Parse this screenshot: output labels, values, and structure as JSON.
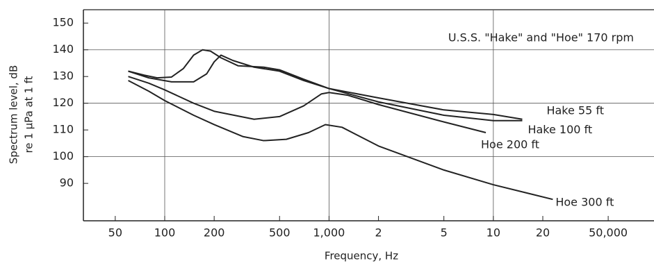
{
  "chart_data": {
    "type": "line",
    "annotation": "U.S.S. \"Hake\" and \"Hoe\" 170 rpm",
    "xlabel": "Frequency, Hz",
    "ylabel": [
      "Spectrum level, dB",
      "re 1 μPa at 1 ft"
    ],
    "xscale": "log",
    "xlim": [
      32,
      95000
    ],
    "ylim": [
      76,
      155
    ],
    "xticks": [
      50,
      100,
      200,
      500,
      {
        "value": 1000,
        "label": "1,000"
      },
      {
        "value": 2000,
        "label": "2"
      },
      {
        "value": 5000,
        "label": "5"
      },
      {
        "value": 10000,
        "label": "10"
      },
      {
        "value": 20000,
        "label": "20"
      },
      {
        "value": 50000,
        "label": "50,000"
      }
    ],
    "yticks": [
      90,
      100,
      110,
      120,
      130,
      140,
      150
    ],
    "xgrid": [
      100,
      1000,
      10000
    ],
    "ygrid": [
      100,
      120,
      140
    ],
    "series": [
      {
        "name": "Hake 55 ft",
        "color": "#222222",
        "x": [
          60,
          75,
          90,
          110,
          130,
          150,
          170,
          190,
          220,
          280,
          400,
          500,
          700,
          1000,
          2000,
          5000,
          10000,
          15000
        ],
        "values": [
          132,
          130.5,
          129.5,
          129.8,
          133,
          138,
          140,
          139.5,
          137,
          134,
          133.5,
          132.5,
          129,
          125.5,
          122,
          117.5,
          115.8,
          114
        ]
      },
      {
        "name": "Hake 100 ft",
        "color": "#222222",
        "x": [
          60,
          80,
          110,
          150,
          180,
          200,
          220,
          260,
          350,
          500,
          700,
          1000,
          2000,
          5000,
          10000,
          15000
        ],
        "values": [
          132,
          129.5,
          128,
          128,
          131,
          135.5,
          138,
          136,
          133.5,
          132,
          128.5,
          125.5,
          120.5,
          115.5,
          113.5,
          113.5
        ]
      },
      {
        "name": "Hoe 200 ft",
        "color": "#222222",
        "x": [
          60,
          80,
          100,
          150,
          200,
          350,
          500,
          700,
          900,
          1000,
          1300,
          2000,
          5000,
          9000
        ],
        "values": [
          130,
          127.5,
          125,
          120,
          117,
          114,
          115,
          119,
          123.5,
          124,
          123,
          119.5,
          113,
          109
        ]
      },
      {
        "name": "Hoe 300 ft",
        "color": "#222222",
        "x": [
          60,
          80,
          100,
          150,
          200,
          300,
          400,
          550,
          750,
          950,
          1200,
          2000,
          5000,
          10000,
          23000
        ],
        "values": [
          128.5,
          124.5,
          121,
          115.5,
          112,
          107.5,
          106,
          106.5,
          109,
          112,
          111,
          104,
          95,
          89.5,
          84
        ]
      }
    ]
  }
}
